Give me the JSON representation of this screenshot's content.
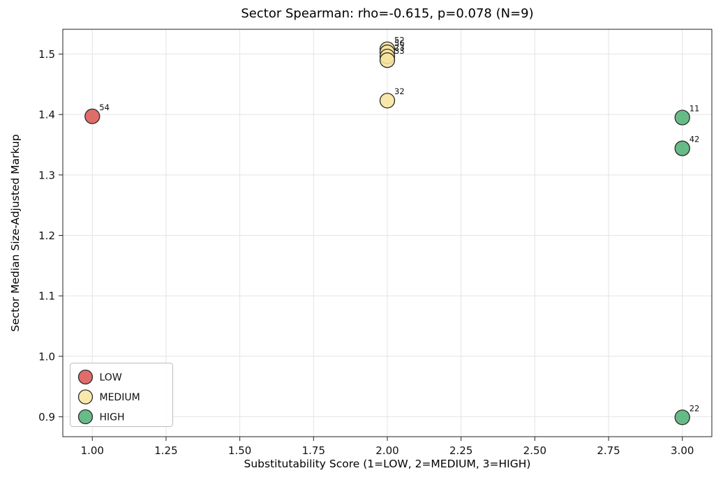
{
  "chart_data": {
    "type": "scatter",
    "title": "Sector Spearman: rho=-0.615, p=0.078 (N=9)",
    "xlabel": "Substitutability Score (1=LOW, 2=MEDIUM, 3=HIGH)",
    "ylabel": "Sector Median Size-Adjusted Markup",
    "xlim": [
      0.9,
      3.1
    ],
    "ylim": [
      0.867,
      1.541
    ],
    "xticks": [
      1.0,
      1.25,
      1.5,
      1.75,
      2.0,
      2.25,
      2.5,
      2.75,
      3.0
    ],
    "xtick_labels": [
      "1.00",
      "1.25",
      "1.50",
      "1.75",
      "2.00",
      "2.25",
      "2.50",
      "2.75",
      "3.00"
    ],
    "yticks": [
      0.9,
      1.0,
      1.1,
      1.2,
      1.3,
      1.4,
      1.5
    ],
    "ytick_labels": [
      "0.9",
      "1.0",
      "1.1",
      "1.2",
      "1.3",
      "1.4",
      "1.5"
    ],
    "grid": true,
    "grid_color": "#e4e4e4",
    "spine_color": "#222222",
    "marker_edge_color": "#2a2a2a",
    "legend_position": "lower-left",
    "series": [
      {
        "name": "LOW",
        "color": "#d9534f",
        "points": [
          {
            "x": 1,
            "y": 1.397,
            "label": "54"
          }
        ]
      },
      {
        "name": "MEDIUM",
        "color": "#f7e49c",
        "points": [
          {
            "x": 2,
            "y": 1.508,
            "label": "52"
          },
          {
            "x": 2,
            "y": 1.503,
            "label": "56"
          },
          {
            "x": 2,
            "y": 1.496,
            "label": "23"
          },
          {
            "x": 2,
            "y": 1.49,
            "label": "33"
          },
          {
            "x": 2,
            "y": 1.423,
            "label": "32"
          }
        ]
      },
      {
        "name": "HIGH",
        "color": "#4caf72",
        "points": [
          {
            "x": 3,
            "y": 1.395,
            "label": "11"
          },
          {
            "x": 3,
            "y": 1.344,
            "label": "42"
          },
          {
            "x": 3,
            "y": 0.899,
            "label": "22"
          }
        ]
      }
    ]
  }
}
